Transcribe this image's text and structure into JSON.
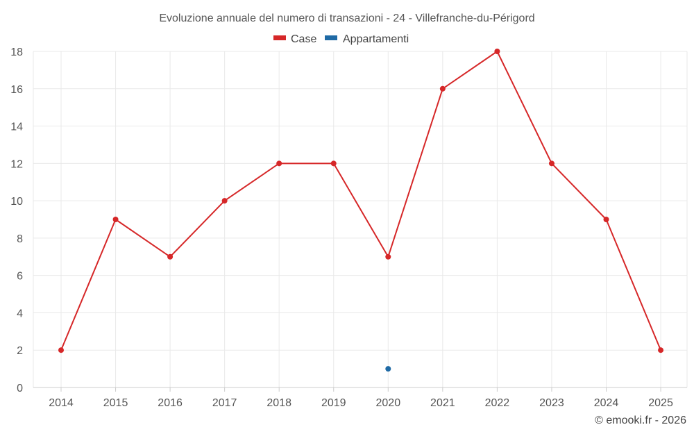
{
  "chart_data": {
    "type": "line",
    "title": "Evoluzione annuale del numero di transazioni - 24 - Villefranche-du-Périgord",
    "categories": [
      "2014",
      "2015",
      "2016",
      "2017",
      "2018",
      "2019",
      "2020",
      "2021",
      "2022",
      "2023",
      "2024",
      "2025"
    ],
    "series": [
      {
        "name": "Case",
        "color": "#d62728",
        "values": [
          2,
          9,
          7,
          10,
          12,
          12,
          7,
          16,
          18,
          12,
          9,
          2
        ]
      },
      {
        "name": "Appartamenti",
        "color": "#1f6aa5",
        "values": [
          null,
          null,
          null,
          null,
          null,
          null,
          1,
          null,
          null,
          null,
          null,
          null
        ]
      }
    ],
    "ylim": [
      0,
      18
    ],
    "yticks": [
      0,
      2,
      4,
      6,
      8,
      10,
      12,
      14,
      16,
      18
    ],
    "xlabel": "",
    "ylabel": "",
    "grid": true,
    "legend_position": "top-center"
  },
  "credit": "© emooki.fr - 2026"
}
